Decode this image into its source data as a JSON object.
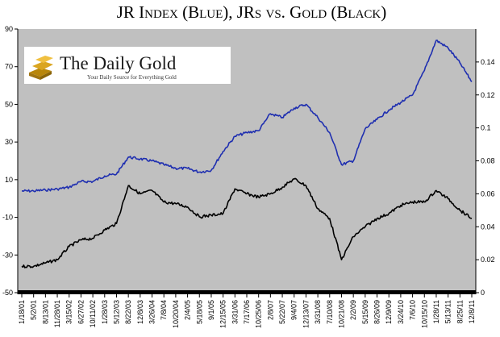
{
  "chart_data": {
    "type": "line",
    "title": "JR Index (Blue), JRs vs. Gold (Black)",
    "logo": {
      "name": "The Daily Gold",
      "tagline": "Your Daily Source for Everything Gold"
    },
    "x": [
      "1/18/01",
      "5/2/01",
      "8/13/01",
      "11/28/01",
      "3/15/02",
      "6/27/02",
      "10/11/02",
      "1/28/03",
      "5/12/03",
      "8/22/03",
      "12/8/03",
      "3/26/04",
      "7/8/04",
      "10/20/04",
      "2/4/05",
      "5/18/05",
      "9/1/05",
      "12/15/05",
      "3/31/06",
      "7/17/06",
      "10/25/06",
      "2/8/07",
      "5/22/07",
      "9/4/07",
      "12/13/07",
      "3/31/08",
      "7/10/08",
      "10/21/08",
      "2/2/09",
      "5/15/09",
      "8/26/09",
      "12/9/09",
      "3/24/10",
      "7/6/10",
      "10/15/10",
      "1/28/11",
      "5/13/11",
      "8/25/11",
      "12/8/11"
    ],
    "left_axis": {
      "ylim": [
        -50,
        90
      ],
      "ticks": [
        "90",
        "70",
        "50",
        "30",
        "10",
        "-10",
        "-30",
        "-50"
      ]
    },
    "right_axis": {
      "ylim": [
        0,
        0.16
      ],
      "ticks": [
        "0.14",
        "0.12",
        "0.1",
        "0.08",
        "0.06",
        "0.04",
        "0.02",
        "0"
      ]
    },
    "series": [
      {
        "name": "JR Index",
        "axis": "left",
        "color": "#1f2fb0",
        "values": [
          4,
          4,
          4.5,
          5,
          6,
          9,
          9,
          12,
          13,
          22,
          21,
          20,
          18,
          16,
          16,
          14,
          15,
          25,
          33,
          35,
          36,
          45,
          43,
          48,
          50,
          43,
          35,
          18,
          20,
          37,
          42,
          47,
          51,
          55,
          68,
          84,
          80,
          72,
          62
        ]
      },
      {
        "name": "JRs vs. Gold",
        "axis": "right",
        "color": "#000000",
        "values": [
          0.016,
          0.016,
          0.018,
          0.02,
          0.028,
          0.032,
          0.033,
          0.038,
          0.042,
          0.065,
          0.06,
          0.062,
          0.055,
          0.054,
          0.052,
          0.046,
          0.047,
          0.048,
          0.063,
          0.06,
          0.058,
          0.06,
          0.064,
          0.069,
          0.065,
          0.051,
          0.045,
          0.02,
          0.034,
          0.04,
          0.045,
          0.048,
          0.053,
          0.055,
          0.055,
          0.062,
          0.057,
          0.05,
          0.045
        ]
      }
    ],
    "colors": {
      "plot_bg": "#c0c0c0",
      "axis": "#000000",
      "baseline_bar": "#000000"
    }
  }
}
